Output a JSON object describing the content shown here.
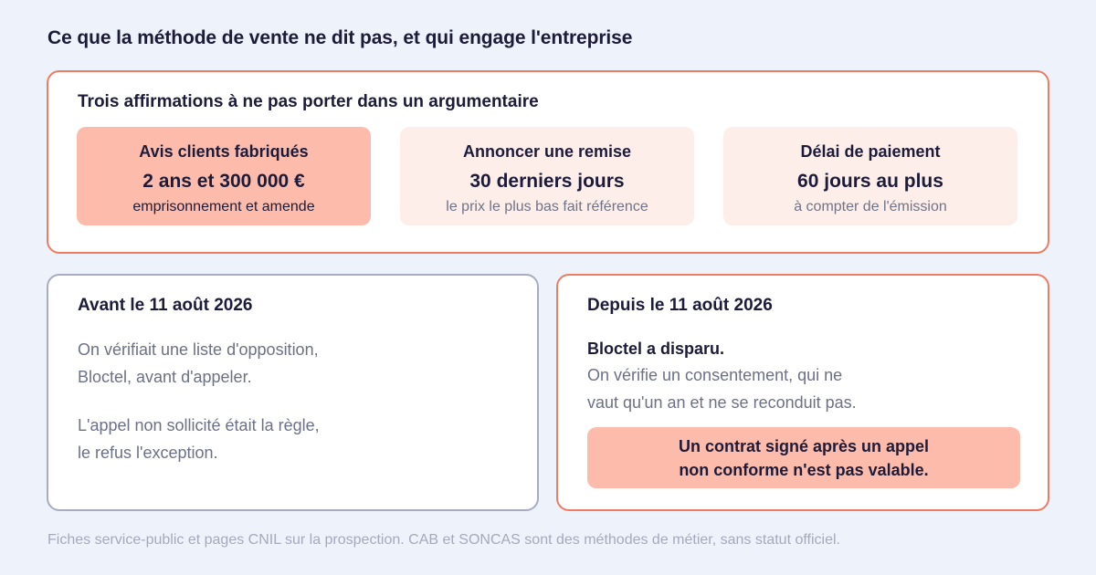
{
  "title": "Ce que la méthode de vente ne dit pas, et qui engage l'entreprise",
  "affirmations": {
    "heading": "Trois affirmations à ne pas porter dans un argumentaire",
    "tiles": [
      {
        "label": "Avis clients fabriqués",
        "value": "2 ans et 300 000 €",
        "note": "emprisonnement et amende"
      },
      {
        "label": "Annoncer une remise",
        "value": "30 derniers jours",
        "note": "le prix le plus bas fait référence"
      },
      {
        "label": "Délai de paiement",
        "value": "60 jours au plus",
        "note": "à compter de l'émission"
      }
    ]
  },
  "before": {
    "heading": "Avant le 11 août 2026",
    "paragraphs": [
      [
        "On vérifiait une liste d'opposition,",
        "Bloctel, avant d'appeler."
      ],
      [
        "L'appel non sollicité était la règle,",
        "le refus l'exception."
      ]
    ]
  },
  "after": {
    "heading": "Depuis le 11 août 2026",
    "lead": "Bloctel a disparu.",
    "paragraph": [
      "On vérifie un consentement, qui ne",
      "vaut qu'un an et ne se reconduit pas."
    ],
    "callout": [
      "Un contrat signé après un appel",
      "non conforme n'est pas valable."
    ]
  },
  "footer": "Fiches service-public et pages CNIL sur la prospection. CAB et SONCAS sont des méthodes de métier, sans statut officiel.",
  "colors": {
    "background": "#eef2fb",
    "accent_border": "#ef7b62",
    "neutral_border": "#a9acc1",
    "highlight_fill": "#fdbcab",
    "soft_fill": "#fdeeea"
  }
}
